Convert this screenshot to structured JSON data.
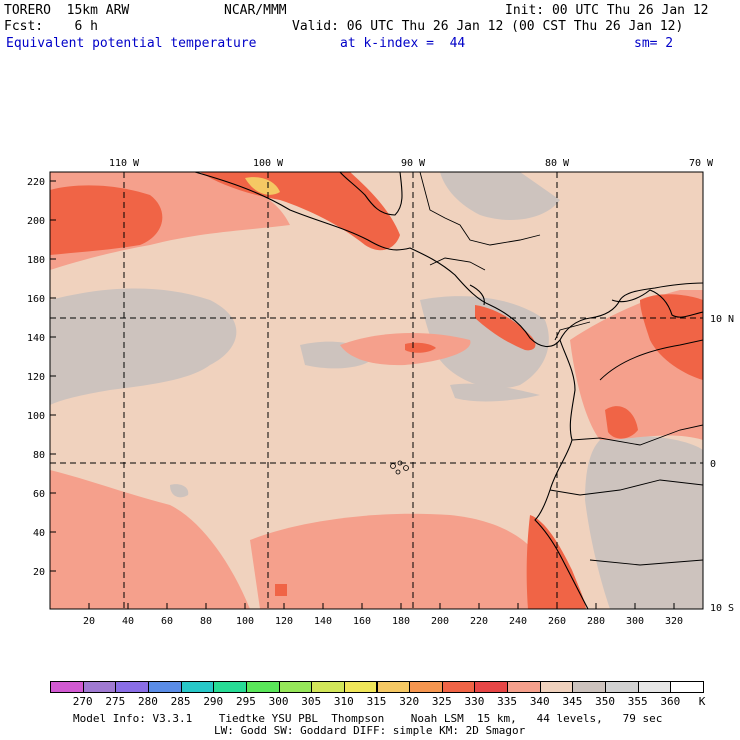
{
  "header": {
    "model": "TORERO  15km ARW",
    "org": "NCAR/MMM",
    "init": "Init: 00 UTC Thu 26 Jan 12",
    "fcst": "Fcst:    6 h",
    "valid": "Valid: 06 UTC Thu 26 Jan 12 (00 CST Thu 26 Jan 12)",
    "field": "Equivalent potential temperature",
    "level": "at k-index =  44",
    "smooth": "sm= 2"
  },
  "map": {
    "top_lon_labels": [
      "110 W",
      "100 W",
      "90 W",
      "80 W",
      "70 W"
    ],
    "right_lat_labels": [
      "10 N",
      "0",
      "10 S"
    ],
    "left_ticks": [
      "220",
      "200",
      "180",
      "160",
      "140",
      "120",
      "100",
      "80",
      "60",
      "40",
      "20"
    ],
    "bottom_ticks": [
      "20",
      "40",
      "60",
      "80",
      "100",
      "120",
      "140",
      "160",
      "180",
      "200",
      "220",
      "240",
      "260",
      "280",
      "300",
      "320"
    ]
  },
  "colorbar": {
    "labels": [
      "270",
      "275",
      "280",
      "285",
      "290",
      "295",
      "300",
      "305",
      "310",
      "315",
      "320",
      "325",
      "330",
      "335",
      "340",
      "345",
      "350",
      "355",
      "360"
    ],
    "unit": "K",
    "colors": [
      "#d25ad2",
      "#a07ad2",
      "#8a6ee6",
      "#5a8ce6",
      "#28c8c8",
      "#28dc96",
      "#5ae65a",
      "#96e65a",
      "#d2e65a",
      "#f0e65a",
      "#f5c864",
      "#f59650",
      "#f06446",
      "#e64646",
      "#f5a08c",
      "#f0d2be",
      "#cdc3be",
      "#d2d2d2",
      "#e6e6e6",
      "#ffffff"
    ]
  },
  "footer": {
    "line1": "Model Info: V3.3.1    Tiedtke YSU PBL  Thompson    Noah LSM  15 km,   44 levels,   79 sec",
    "line2": "LW: Godd SW: Goddard DIFF: simple KM: 2D Smagor"
  }
}
